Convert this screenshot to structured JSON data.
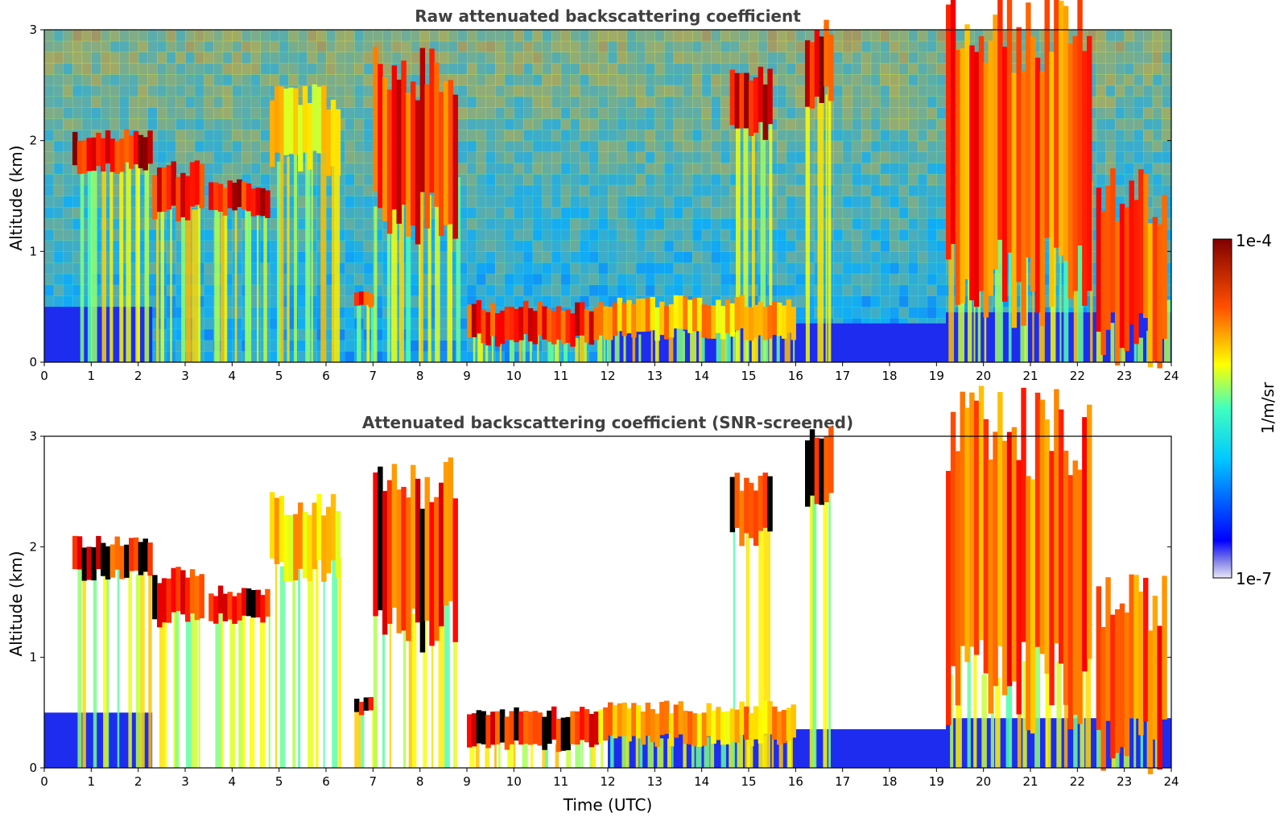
{
  "chart_data": [
    {
      "type": "heatmap",
      "title": "Raw attenuated backscattering coefficient",
      "xlabel": "",
      "ylabel": "Altitude (km)",
      "xlim": [
        0,
        24
      ],
      "ylim": [
        0,
        3
      ],
      "xticks": [
        "0",
        "1",
        "2",
        "3",
        "4",
        "5",
        "6",
        "7",
        "8",
        "9",
        "10",
        "11",
        "12",
        "13",
        "14",
        "15",
        "16",
        "17",
        "18",
        "19",
        "20",
        "21",
        "22",
        "23",
        "24"
      ],
      "yticks": [
        "0",
        "1",
        "2",
        "3"
      ],
      "cloud_layers": [
        {
          "t_start": 0.6,
          "t_end": 2.3,
          "alt_base": 1.75,
          "alt_top": 2.05,
          "intensity": 1.0
        },
        {
          "t_start": 2.3,
          "t_end": 3.4,
          "alt_base": 1.35,
          "alt_top": 1.75,
          "intensity": 1.0
        },
        {
          "t_start": 3.5,
          "t_end": 4.8,
          "alt_base": 1.35,
          "alt_top": 1.6,
          "intensity": 1.0
        },
        {
          "t_start": 4.8,
          "t_end": 6.3,
          "alt_base": 1.8,
          "alt_top": 2.4,
          "intensity": 0.75
        },
        {
          "t_start": 6.6,
          "t_end": 7.0,
          "alt_base": 0.5,
          "alt_top": 0.62,
          "intensity": 1.0
        },
        {
          "t_start": 7.0,
          "t_end": 8.8,
          "alt_base": 1.3,
          "alt_top": 2.6,
          "intensity": 0.95
        },
        {
          "t_start": 9.0,
          "t_end": 11.8,
          "alt_base": 0.2,
          "alt_top": 0.5,
          "intensity": 1.0
        },
        {
          "t_start": 11.8,
          "t_end": 16.0,
          "alt_base": 0.25,
          "alt_top": 0.55,
          "intensity": 0.8
        },
        {
          "t_start": 14.6,
          "t_end": 15.5,
          "alt_base": 2.1,
          "alt_top": 2.6,
          "intensity": 1.0
        },
        {
          "t_start": 16.2,
          "t_end": 16.8,
          "alt_base": 2.4,
          "alt_top": 3.0,
          "intensity": 1.0
        },
        {
          "t_start": 19.2,
          "t_end": 22.3,
          "alt_base": 0.7,
          "alt_top": 3.0,
          "intensity": 0.9
        },
        {
          "t_start": 22.4,
          "t_end": 23.9,
          "alt_base": 0.2,
          "alt_top": 1.5,
          "intensity": 0.9
        }
      ],
      "boundary_layer": [
        {
          "t_start": 0.0,
          "t_end": 2.3,
          "alt_top": 0.5
        },
        {
          "t_start": 12.0,
          "t_end": 19.2,
          "alt_top": 0.35
        },
        {
          "t_start": 19.2,
          "t_end": 24.0,
          "alt_top": 0.45
        }
      ]
    },
    {
      "type": "heatmap",
      "title": "Attenuated backscattering coefficient (SNR-screened)",
      "xlabel": "Time (UTC)",
      "ylabel": "Altitude (km)",
      "xlim": [
        0,
        24
      ],
      "ylim": [
        0,
        3
      ],
      "xticks": [
        "0",
        "1",
        "2",
        "3",
        "4",
        "5",
        "6",
        "7",
        "8",
        "9",
        "10",
        "11",
        "12",
        "13",
        "14",
        "15",
        "16",
        "17",
        "18",
        "19",
        "20",
        "21",
        "22",
        "23",
        "24"
      ],
      "yticks": [
        "0",
        "1",
        "2",
        "3"
      ],
      "screened": true
    }
  ],
  "colorbar": {
    "label": "1/m/sr",
    "max_label": "1e-4",
    "min_label": "1e-7",
    "scale": "log",
    "range": [
      1e-07,
      0.0001
    ],
    "colormap": "jet",
    "low_end_colors": [
      "#e8e8f8",
      "#9090e8",
      "#2020f0"
    ]
  },
  "colors": {
    "clear_air_raw": "#2a48e8",
    "screened_background": "#ffffff",
    "saturated": "#000000"
  }
}
